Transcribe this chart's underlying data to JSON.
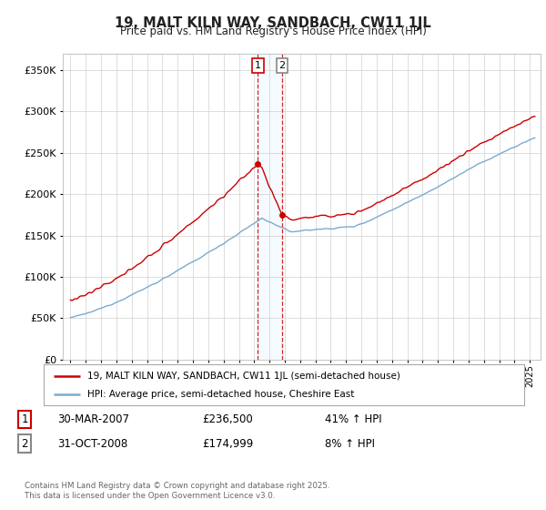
{
  "title": "19, MALT KILN WAY, SANDBACH, CW11 1JL",
  "subtitle": "Price paid vs. HM Land Registry's House Price Index (HPI)",
  "legend_line1": "19, MALT KILN WAY, SANDBACH, CW11 1JL (semi-detached house)",
  "legend_line2": "HPI: Average price, semi-detached house, Cheshire East",
  "transaction1_date": "30-MAR-2007",
  "transaction1_price": "£236,500",
  "transaction1_hpi": "41% ↑ HPI",
  "transaction1_year": 2007.24,
  "transaction1_value": 236500,
  "transaction2_date": "31-OCT-2008",
  "transaction2_price": "£174,999",
  "transaction2_hpi": "8% ↑ HPI",
  "transaction2_year": 2008.83,
  "transaction2_value": 174999,
  "red_color": "#cc0000",
  "blue_color": "#7aabcf",
  "grid_color": "#d0d0d0",
  "background_color": "#ffffff",
  "ylim": [
    0,
    370000
  ],
  "yticks": [
    0,
    50000,
    100000,
    150000,
    200000,
    250000,
    300000,
    350000
  ],
  "footer": "Contains HM Land Registry data © Crown copyright and database right 2025.\nThis data is licensed under the Open Government Licence v3.0.",
  "hpi_at_2007": 167730,
  "hpi_at_2008": 162037
}
